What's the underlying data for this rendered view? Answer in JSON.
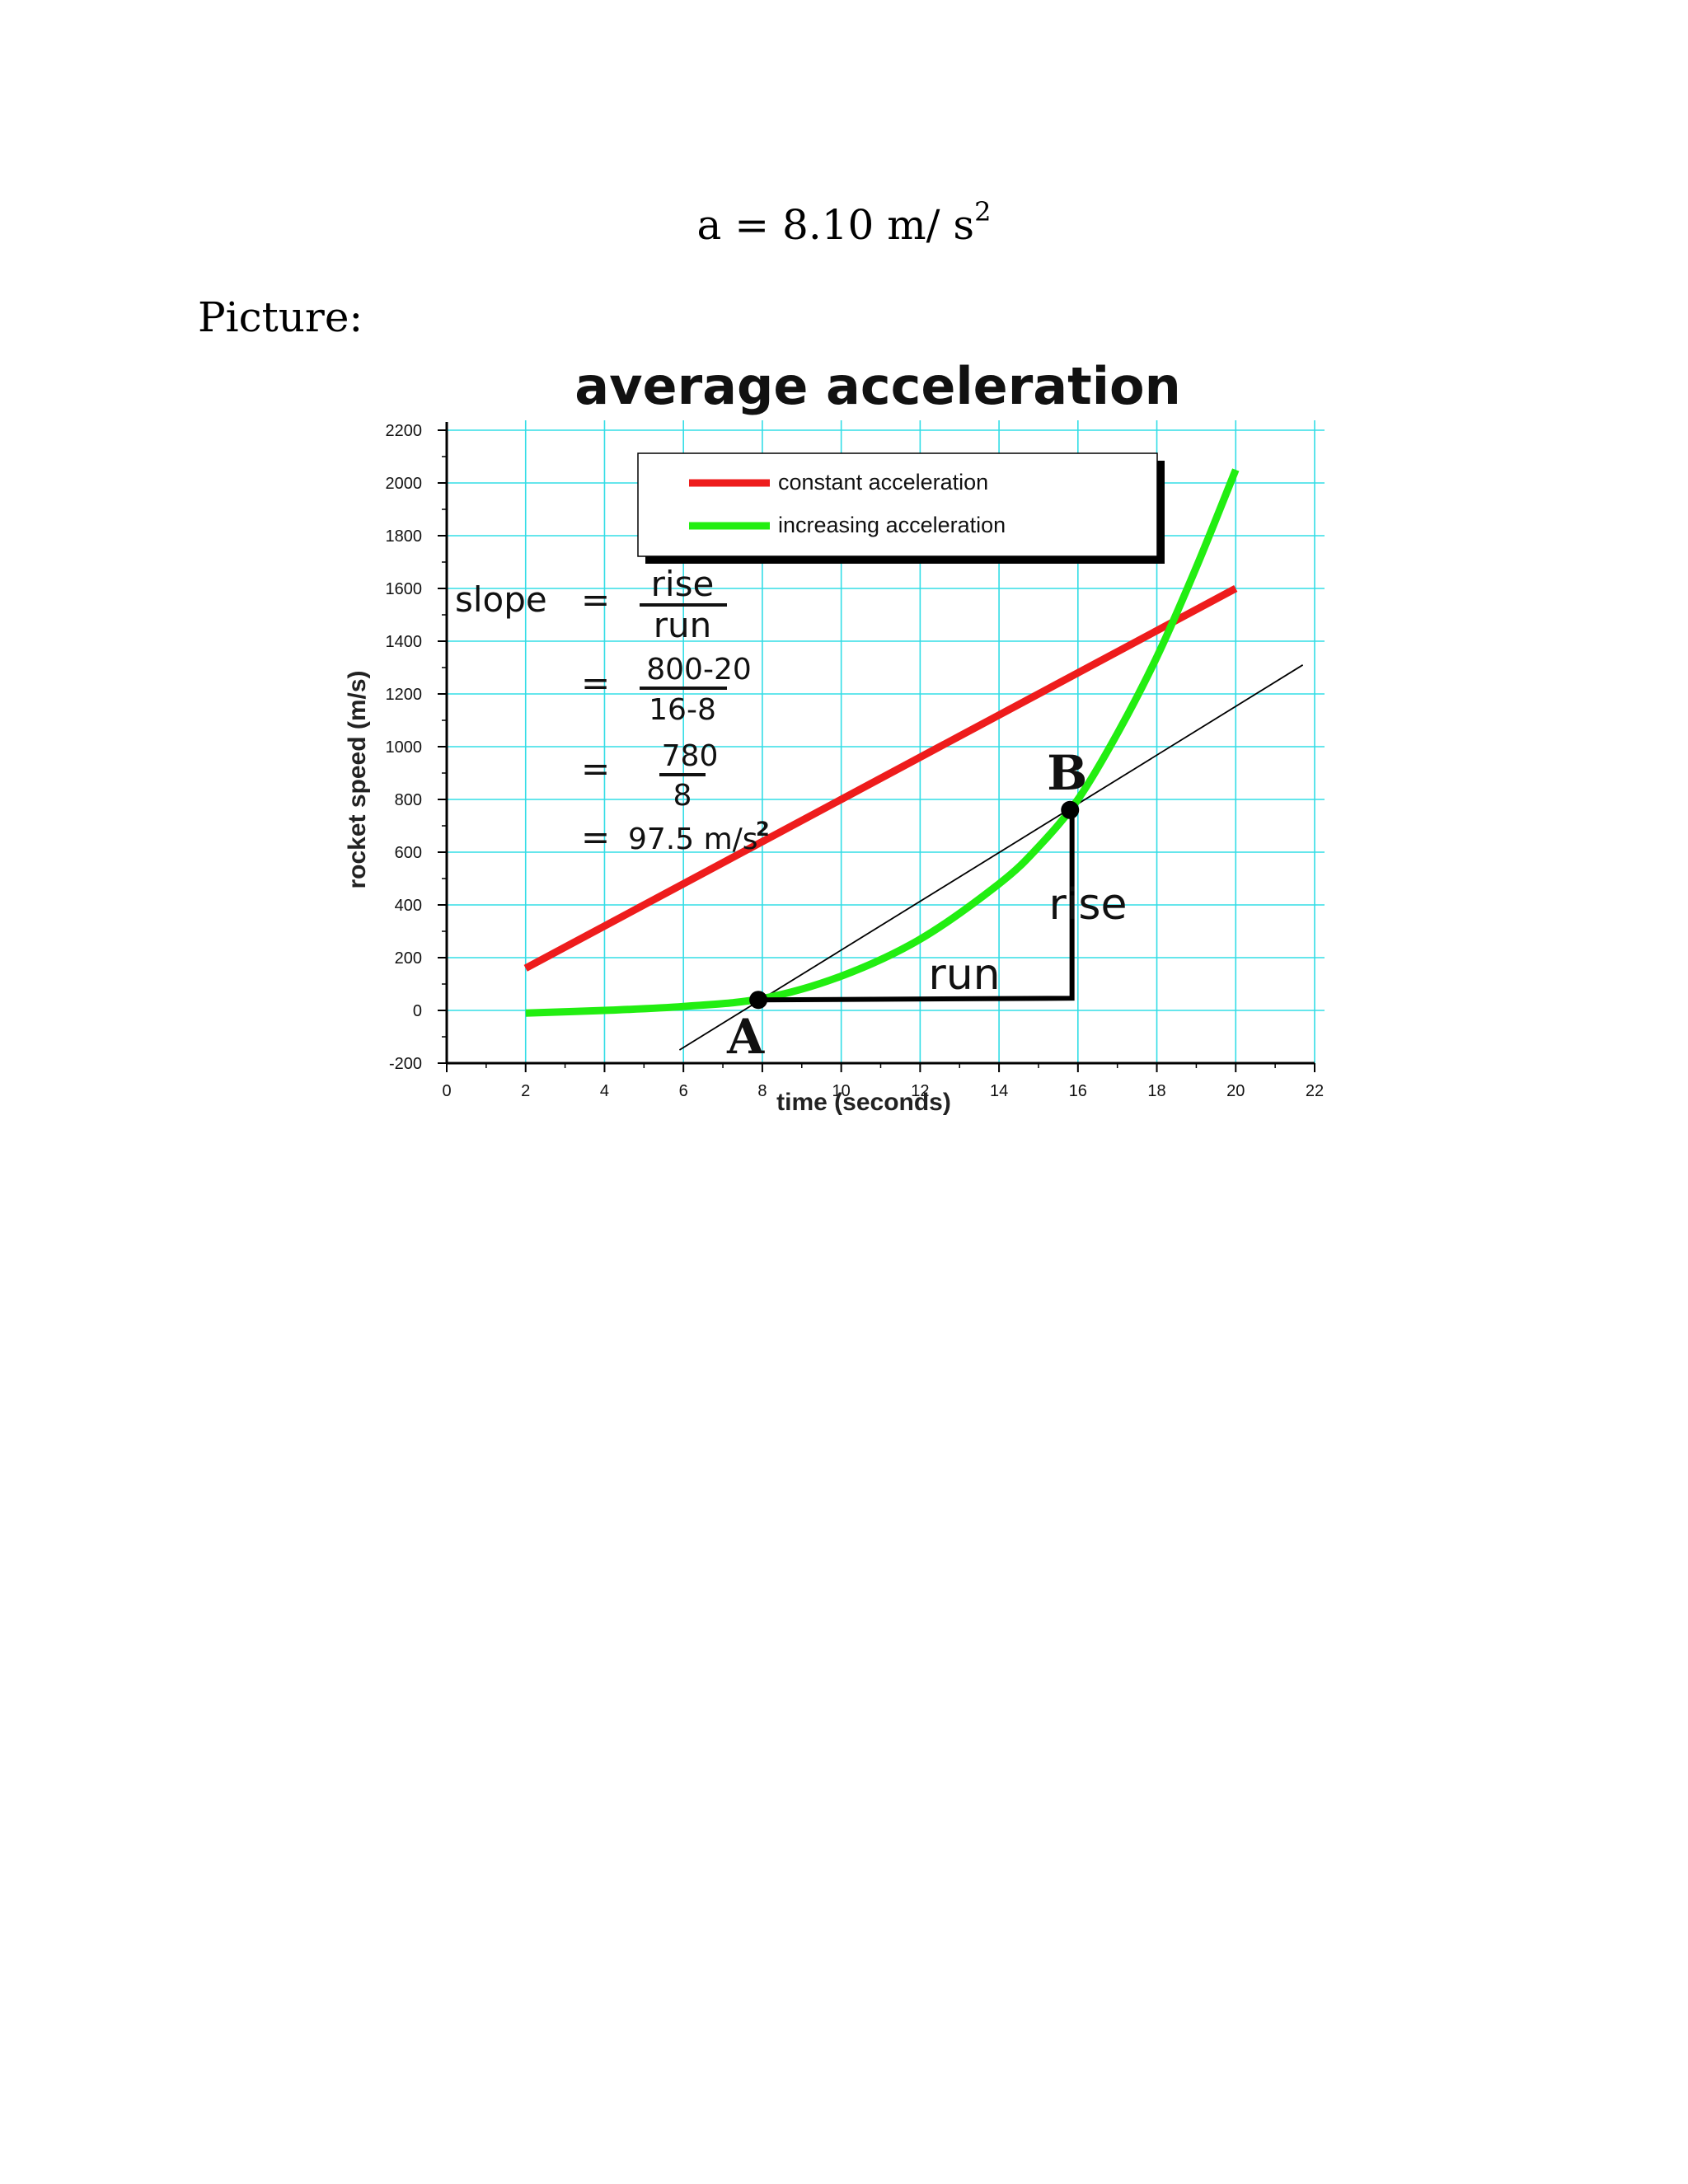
{
  "equation": {
    "base": "a = 8.10 m/ s",
    "exponent": "2"
  },
  "section_label": "Picture:",
  "chart_data": {
    "type": "line",
    "title": "average acceleration",
    "xlabel": "time (seconds)",
    "ylabel": "rocket speed (m/s)",
    "xlim": [
      0,
      22
    ],
    "ylim": [
      -200,
      2200
    ],
    "x_ticks": [
      0,
      2,
      4,
      6,
      8,
      10,
      12,
      14,
      16,
      18,
      20,
      22
    ],
    "y_ticks": [
      -200,
      0,
      200,
      400,
      600,
      800,
      1000,
      1200,
      1400,
      1600,
      1800,
      2000,
      2200
    ],
    "grid": true,
    "legend_position": "top",
    "colors": {
      "constant": "#ee1c1c",
      "increasing": "#22ee11",
      "grid": "#33dde6",
      "tangent": "#000000"
    },
    "series": [
      {
        "name": "constant acceleration",
        "x": [
          2,
          20
        ],
        "y": [
          160,
          1600
        ]
      },
      {
        "name": "increasing acceleration",
        "x": [
          2,
          4,
          6,
          8,
          10,
          12,
          14,
          15,
          16,
          17,
          18,
          19,
          20
        ],
        "y": [
          -10,
          0,
          15,
          45,
          130,
          270,
          480,
          620,
          800,
          1050,
          1340,
          1680,
          2050
        ]
      }
    ],
    "tangent_line": {
      "x": [
        5.9,
        21.7
      ],
      "y": [
        -150,
        1310
      ]
    },
    "points": [
      {
        "label": "A",
        "x": 7.9,
        "y": 40
      },
      {
        "label": "B",
        "x": 15.8,
        "y": 760
      }
    ],
    "annotations": {
      "run": "run",
      "rise": "rise",
      "slope_label": "slope",
      "equals": "=",
      "fraction1_num": "rise",
      "fraction1_den": "run",
      "fraction2_num": "800-20",
      "fraction2_den": "16-8",
      "fraction3_num": "780",
      "fraction3_den": "8",
      "result": "97.5 m/s",
      "result_exp": "2"
    }
  }
}
